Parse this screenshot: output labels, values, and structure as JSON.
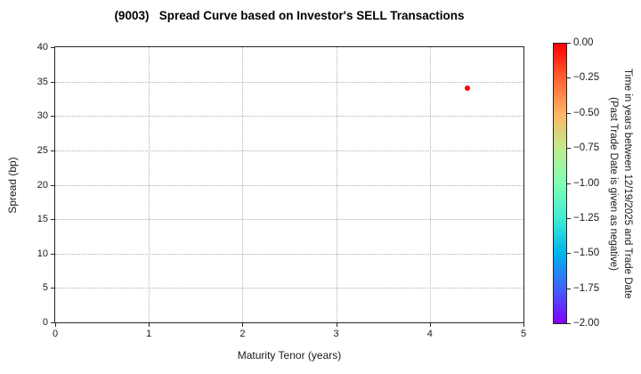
{
  "chart_data": {
    "type": "scatter",
    "title": "(9003)   Spread Curve based on Investor's SELL Transactions",
    "xlabel": "Maturity Tenor (years)",
    "ylabel": "Spread (bp)",
    "xlim": [
      0,
      5
    ],
    "ylim": [
      0,
      40
    ],
    "x_ticks": [
      0,
      1,
      2,
      3,
      4,
      5
    ],
    "y_ticks": [
      0,
      5,
      10,
      15,
      20,
      25,
      30,
      35,
      40
    ],
    "grid": true,
    "grid_style": "dotted",
    "legend": "none",
    "points": [
      {
        "x": 4.4,
        "y": 34,
        "time_years": 0.0,
        "color": "#ff0000"
      }
    ],
    "colorbar": {
      "label_line1": "Time in years between 12/19/2025 and Trade Date",
      "label_line2": "(Past Trade Date is given as negative)",
      "ticks": [
        "0.00",
        "−0.25",
        "−0.50",
        "−0.75",
        "−1.00",
        "−1.25",
        "−1.50",
        "−1.75",
        "−2.00"
      ],
      "range_top": 0.0,
      "range_bottom": -2.0,
      "colormap": "rainbow",
      "gradient_colors": [
        "#ff0000",
        "#ff6232",
        "#ffb462",
        "#bfec8e",
        "#80ffb4",
        "#40ecd4",
        "#00b4ec",
        "#4062fa",
        "#8000ff"
      ]
    },
    "colors": {
      "frame": "#262626",
      "gridline": "#b0b0b0",
      "text": "#1a1a1a",
      "point": "#ff0000"
    }
  }
}
